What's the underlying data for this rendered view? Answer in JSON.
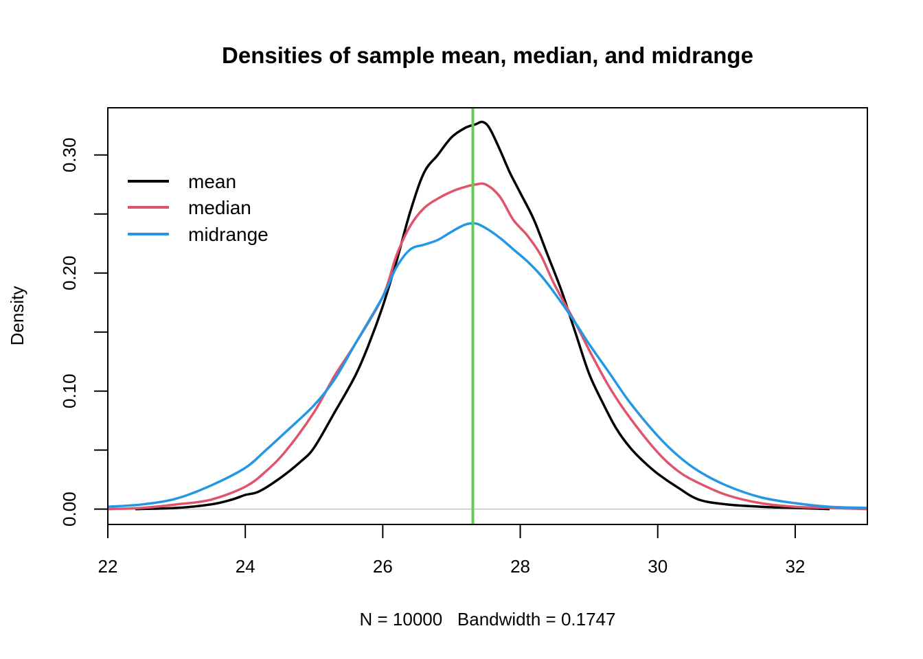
{
  "chart_data": {
    "type": "line",
    "title": "Densities of sample mean, median, and midrange",
    "xlabel": "N = 10000   Bandwidth = 0.1747",
    "ylabel": "Density",
    "xlim": [
      22,
      33.05
    ],
    "ylim": [
      -0.013,
      0.34
    ],
    "x_ticks": [
      22,
      24,
      26,
      28,
      30,
      32
    ],
    "x_tick_labels": [
      "22",
      "24",
      "26",
      "28",
      "30",
      "32"
    ],
    "y_ticks": [
      0.0,
      0.05,
      0.1,
      0.15,
      0.2,
      0.25,
      0.3
    ],
    "y_tick_labels": [
      "0.00",
      "",
      "0.10",
      "",
      "0.20",
      "",
      "0.30"
    ],
    "grid": false,
    "baseline": {
      "y": 0,
      "color": "#bebebe"
    },
    "vline": {
      "x": 27.31,
      "color": "#61d04f"
    },
    "legend": {
      "placement": "top-left",
      "entries": [
        {
          "label": "mean",
          "color": "#000000"
        },
        {
          "label": "median",
          "color": "#df536b"
        },
        {
          "label": "midrange",
          "color": "#2297e6"
        }
      ]
    },
    "series": [
      {
        "name": "mean",
        "color": "#000000",
        "x": [
          22.4,
          23.0,
          23.5,
          23.8,
          24.0,
          24.2,
          24.5,
          24.8,
          25.0,
          25.3,
          25.6,
          25.8,
          26.0,
          26.2,
          26.4,
          26.6,
          26.8,
          27.0,
          27.2,
          27.35,
          27.45,
          27.55,
          27.7,
          27.85,
          28.0,
          28.2,
          28.4,
          28.6,
          28.8,
          29.0,
          29.2,
          29.4,
          29.6,
          29.8,
          30.0,
          30.3,
          30.6,
          31.0,
          31.5,
          32.0,
          32.5
        ],
        "y": [
          0.0,
          0.001,
          0.004,
          0.008,
          0.012,
          0.015,
          0.026,
          0.04,
          0.052,
          0.082,
          0.113,
          0.14,
          0.172,
          0.21,
          0.252,
          0.285,
          0.3,
          0.315,
          0.323,
          0.326,
          0.328,
          0.323,
          0.305,
          0.285,
          0.268,
          0.245,
          0.215,
          0.185,
          0.15,
          0.115,
          0.09,
          0.068,
          0.052,
          0.04,
          0.03,
          0.018,
          0.008,
          0.004,
          0.002,
          0.001,
          0.0
        ]
      },
      {
        "name": "median",
        "color": "#df536b",
        "x": [
          22.0,
          22.5,
          23.0,
          23.5,
          24.0,
          24.3,
          24.6,
          25.0,
          25.3,
          25.6,
          26.0,
          26.2,
          26.4,
          26.6,
          26.8,
          27.0,
          27.2,
          27.35,
          27.5,
          27.7,
          27.9,
          28.1,
          28.3,
          28.5,
          28.8,
          29.0,
          29.3,
          29.6,
          30.0,
          30.3,
          30.6,
          31.0,
          31.5,
          32.0,
          32.5,
          33.05
        ],
        "y": [
          0.0,
          0.001,
          0.004,
          0.008,
          0.019,
          0.032,
          0.05,
          0.082,
          0.113,
          0.14,
          0.18,
          0.215,
          0.24,
          0.255,
          0.263,
          0.269,
          0.273,
          0.275,
          0.275,
          0.265,
          0.245,
          0.232,
          0.215,
          0.19,
          0.158,
          0.135,
          0.103,
          0.077,
          0.048,
          0.032,
          0.022,
          0.012,
          0.005,
          0.002,
          0.001,
          0.0
        ]
      },
      {
        "name": "midrange",
        "color": "#2297e6",
        "x": [
          22.0,
          22.5,
          23.0,
          23.5,
          24.0,
          24.3,
          24.6,
          25.0,
          25.3,
          25.6,
          26.0,
          26.2,
          26.4,
          26.6,
          26.8,
          27.0,
          27.2,
          27.35,
          27.5,
          27.7,
          27.9,
          28.1,
          28.3,
          28.5,
          28.8,
          29.0,
          29.3,
          29.6,
          30.0,
          30.3,
          30.6,
          31.0,
          31.5,
          32.0,
          32.5,
          33.05
        ],
        "y": [
          0.002,
          0.004,
          0.009,
          0.02,
          0.035,
          0.05,
          0.066,
          0.088,
          0.11,
          0.14,
          0.18,
          0.205,
          0.22,
          0.224,
          0.228,
          0.235,
          0.241,
          0.242,
          0.238,
          0.23,
          0.22,
          0.21,
          0.198,
          0.183,
          0.158,
          0.14,
          0.115,
          0.09,
          0.062,
          0.045,
          0.032,
          0.02,
          0.01,
          0.005,
          0.002,
          0.001
        ]
      }
    ]
  }
}
